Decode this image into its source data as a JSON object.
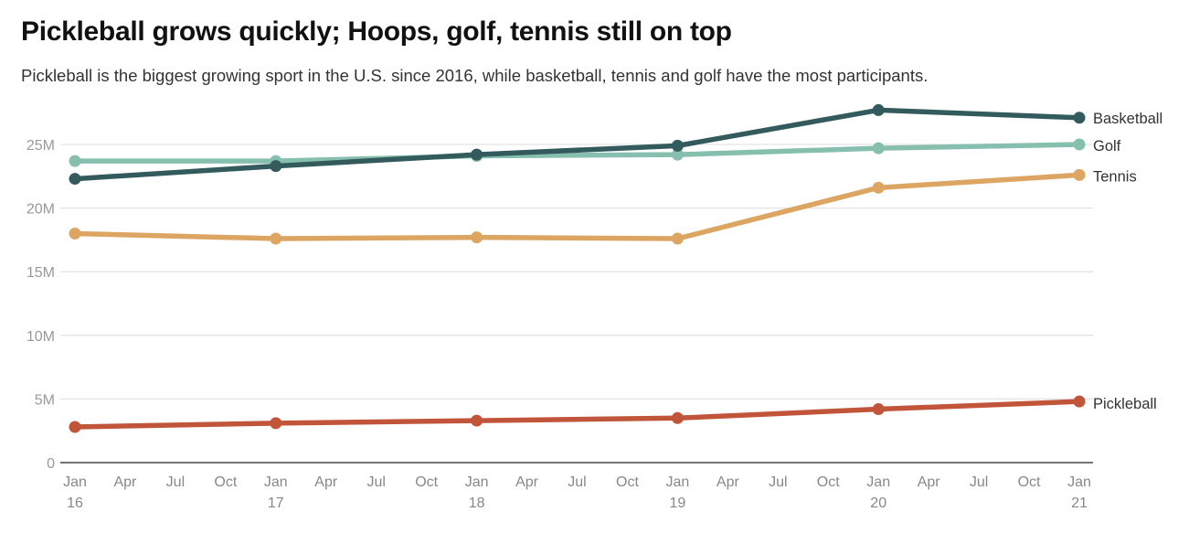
{
  "header": {
    "title": "Pickleball grows quickly; Hoops, golf, tennis still on top",
    "subtitle": "Pickleball is the biggest growing sport in the U.S. since 2016, while basketball, tennis and golf have the most participants."
  },
  "chart_data": {
    "type": "line",
    "title": "Pickleball grows quickly; Hoops, golf, tennis still on top",
    "subtitle": "Pickleball is the biggest growing sport in the U.S. since 2016, while basketball, tennis and golf have the most participants.",
    "xlabel": "",
    "ylabel": "",
    "x": [
      2016,
      2017,
      2018,
      2019,
      2020,
      2021
    ],
    "xlim": [
      2016,
      2021
    ],
    "ylim": [
      0,
      27.8
    ],
    "y_unit": "millions of participants",
    "grid": true,
    "legend": "direct labels at right end of lines",
    "yticks": [
      {
        "value": 0,
        "label": "0"
      },
      {
        "value": 5,
        "label": "5M"
      },
      {
        "value": 10,
        "label": "10M"
      },
      {
        "value": 15,
        "label": "15M"
      },
      {
        "value": 20,
        "label": "20M"
      },
      {
        "value": 25,
        "label": "25M"
      }
    ],
    "xticks": [
      {
        "value": 2016.0,
        "label": "Jan",
        "sub": "16"
      },
      {
        "value": 2016.25,
        "label": "Apr",
        "sub": ""
      },
      {
        "value": 2016.5,
        "label": "Jul",
        "sub": ""
      },
      {
        "value": 2016.75,
        "label": "Oct",
        "sub": ""
      },
      {
        "value": 2017.0,
        "label": "Jan",
        "sub": "17"
      },
      {
        "value": 2017.25,
        "label": "Apr",
        "sub": ""
      },
      {
        "value": 2017.5,
        "label": "Jul",
        "sub": ""
      },
      {
        "value": 2017.75,
        "label": "Oct",
        "sub": ""
      },
      {
        "value": 2018.0,
        "label": "Jan",
        "sub": "18"
      },
      {
        "value": 2018.25,
        "label": "Apr",
        "sub": ""
      },
      {
        "value": 2018.5,
        "label": "Jul",
        "sub": ""
      },
      {
        "value": 2018.75,
        "label": "Oct",
        "sub": ""
      },
      {
        "value": 2019.0,
        "label": "Jan",
        "sub": "19"
      },
      {
        "value": 2019.25,
        "label": "Apr",
        "sub": ""
      },
      {
        "value": 2019.5,
        "label": "Jul",
        "sub": ""
      },
      {
        "value": 2019.75,
        "label": "Oct",
        "sub": ""
      },
      {
        "value": 2020.0,
        "label": "Jan",
        "sub": "20"
      },
      {
        "value": 2020.25,
        "label": "Apr",
        "sub": ""
      },
      {
        "value": 2020.5,
        "label": "Jul",
        "sub": ""
      },
      {
        "value": 2020.75,
        "label": "Oct",
        "sub": ""
      },
      {
        "value": 2021.0,
        "label": "Jan",
        "sub": "21"
      }
    ],
    "series": [
      {
        "name": "Golf",
        "color": "#86bfad",
        "values": [
          23.7,
          23.7,
          24.1,
          24.2,
          24.7,
          25.0
        ]
      },
      {
        "name": "Tennis",
        "color": "#dca562",
        "values": [
          18.0,
          17.6,
          17.7,
          17.6,
          21.6,
          22.6
        ]
      },
      {
        "name": "Pickleball",
        "color": "#c0553a",
        "values": [
          2.8,
          3.1,
          3.3,
          3.5,
          4.2,
          4.8
        ]
      },
      {
        "name": "Basketball",
        "color": "#335a5c",
        "values": [
          22.3,
          23.3,
          24.2,
          24.9,
          27.7,
          27.1
        ]
      }
    ]
  }
}
